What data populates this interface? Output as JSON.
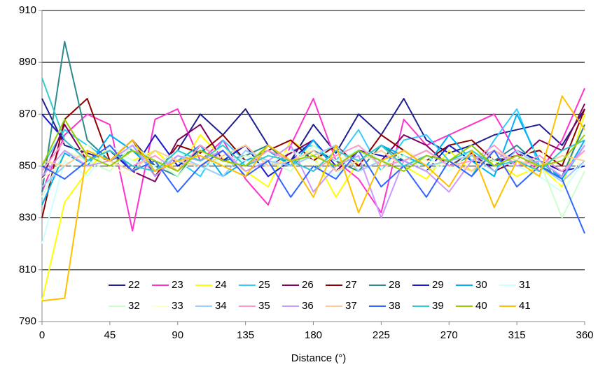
{
  "chart_data": {
    "type": "line",
    "xlabel": "Distance (°)",
    "x": [
      0,
      15,
      30,
      45,
      60,
      75,
      90,
      105,
      120,
      135,
      150,
      165,
      180,
      195,
      210,
      225,
      240,
      255,
      270,
      285,
      300,
      315,
      330,
      345,
      360
    ],
    "xlim": [
      0,
      360
    ],
    "xticks": [
      0,
      45,
      90,
      135,
      180,
      225,
      270,
      315,
      360
    ],
    "ylim": [
      790,
      910
    ],
    "yticks": [
      790,
      810,
      830,
      850,
      870,
      890,
      910
    ],
    "grid": true,
    "legend": "bottom",
    "series": [
      {
        "name": "22",
        "color": "#1f1f8f",
        "values": [
          876,
          858,
          855,
          852,
          860,
          850,
          856,
          870,
          862,
          872,
          858,
          852,
          866,
          855,
          870,
          862,
          876,
          860,
          855,
          858,
          862,
          864,
          866,
          858,
          872
        ]
      },
      {
        "name": "23",
        "color": "#ff33cc",
        "values": [
          840,
          862,
          870,
          866,
          825,
          868,
          872,
          852,
          860,
          845,
          835,
          858,
          876,
          852,
          845,
          832,
          868,
          858,
          862,
          866,
          870,
          855,
          848,
          860,
          880
        ]
      },
      {
        "name": "24",
        "color": "#ffff00",
        "values": [
          798,
          836,
          848,
          858,
          852,
          856,
          848,
          862,
          853,
          848,
          842,
          860,
          854,
          838,
          852,
          858,
          850,
          845,
          856,
          848,
          852,
          846,
          850,
          842,
          870
        ]
      },
      {
        "name": "25",
        "color": "#33ccff",
        "values": [
          850,
          864,
          858,
          852,
          848,
          856,
          852,
          846,
          860,
          852,
          850,
          856,
          858,
          852,
          864,
          848,
          860,
          862,
          852,
          846,
          860,
          872,
          850,
          845,
          858
        ]
      },
      {
        "name": "26",
        "color": "#800060",
        "values": [
          845,
          866,
          852,
          856,
          848,
          844,
          860,
          866,
          852,
          858,
          850,
          855,
          860,
          848,
          856,
          852,
          862,
          858,
          850,
          855,
          848,
          852,
          860,
          856,
          874
        ]
      },
      {
        "name": "27",
        "color": "#8b0000",
        "values": [
          830,
          868,
          876,
          852,
          860,
          846,
          858,
          855,
          862,
          852,
          856,
          860,
          852,
          858,
          850,
          862,
          856,
          852,
          858,
          860,
          852,
          854,
          856,
          850,
          872
        ]
      },
      {
        "name": "28",
        "color": "#2e8b8b",
        "values": [
          840,
          898,
          860,
          852,
          856,
          850,
          846,
          858,
          852,
          854,
          858,
          850,
          856,
          852,
          848,
          858,
          852,
          856,
          850,
          854,
          852,
          858,
          850,
          846,
          866
        ]
      },
      {
        "name": "29",
        "color": "#1a1acc",
        "values": [
          870,
          860,
          852,
          856,
          848,
          862,
          850,
          856,
          852,
          858,
          846,
          852,
          860,
          850,
          856,
          854,
          852,
          848,
          858,
          852,
          850,
          856,
          852,
          848,
          850
        ]
      },
      {
        "name": "30",
        "color": "#00b0f0",
        "values": [
          835,
          855,
          850,
          862,
          856,
          848,
          852,
          858,
          846,
          852,
          856,
          850,
          860,
          848,
          852,
          858,
          854,
          850,
          862,
          852,
          846,
          870,
          852,
          845,
          860
        ]
      },
      {
        "name": "31",
        "color": "#ccffff",
        "values": [
          820,
          852,
          846,
          858,
          852,
          850,
          856,
          848,
          854,
          852,
          850,
          856,
          852,
          846,
          858,
          852,
          850,
          854,
          848,
          856,
          852,
          850,
          846,
          840,
          852
        ]
      },
      {
        "name": "32",
        "color": "#ccffcc",
        "values": [
          838,
          856,
          852,
          848,
          858,
          852,
          846,
          856,
          850,
          854,
          852,
          848,
          858,
          852,
          856,
          850,
          854,
          848,
          852,
          858,
          850,
          854,
          852,
          830,
          848
        ]
      },
      {
        "name": "33",
        "color": "#ffffcc",
        "values": [
          845,
          852,
          858,
          850,
          846,
          856,
          852,
          850,
          858,
          846,
          852,
          856,
          850,
          854,
          852,
          848,
          856,
          852,
          850,
          846,
          854,
          852,
          858,
          840,
          856
        ]
      },
      {
        "name": "34",
        "color": "#99ccff",
        "values": [
          842,
          850,
          856,
          852,
          858,
          848,
          854,
          850,
          846,
          856,
          852,
          850,
          854,
          858,
          848,
          852,
          856,
          850,
          852,
          854,
          848,
          856,
          850,
          844,
          852
        ]
      },
      {
        "name": "35",
        "color": "#ff99cc",
        "values": [
          848,
          860,
          852,
          856,
          850,
          854,
          848,
          858,
          852,
          850,
          856,
          852,
          848,
          854,
          858,
          850,
          852,
          856,
          850,
          852,
          858,
          850,
          854,
          848,
          856
        ]
      },
      {
        "name": "36",
        "color": "#cc99ff",
        "values": [
          846,
          856,
          850,
          852,
          858,
          846,
          854,
          852,
          856,
          848,
          852,
          858,
          840,
          850,
          854,
          830,
          852,
          848,
          840,
          852,
          856,
          850,
          852,
          846,
          858
        ]
      },
      {
        "name": "37",
        "color": "#ffcc99",
        "values": [
          852,
          850,
          856,
          852,
          848,
          856,
          852,
          850,
          854,
          858,
          850,
          852,
          856,
          848,
          852,
          856,
          850,
          854,
          852,
          848,
          856,
          852,
          850,
          854,
          852
        ]
      },
      {
        "name": "38",
        "color": "#3366ff",
        "values": [
          850,
          845,
          852,
          858,
          848,
          852,
          840,
          850,
          856,
          846,
          852,
          838,
          850,
          845,
          856,
          842,
          850,
          838,
          852,
          846,
          856,
          842,
          850,
          845,
          824
        ]
      },
      {
        "name": "39",
        "color": "#33cccc",
        "values": [
          884,
          860,
          852,
          856,
          850,
          848,
          856,
          852,
          858,
          850,
          854,
          852,
          848,
          856,
          852,
          858,
          850,
          854,
          852,
          856,
          850,
          852,
          848,
          856,
          860
        ]
      },
      {
        "name": "40",
        "color": "#99cc00",
        "values": [
          850,
          868,
          854,
          850,
          856,
          852,
          848,
          856,
          852,
          850,
          858,
          852,
          854,
          850,
          856,
          852,
          848,
          854,
          852,
          858,
          850,
          854,
          850,
          852,
          862
        ]
      },
      {
        "name": "41",
        "color": "#ffc000",
        "values": [
          798,
          799,
          856,
          852,
          860,
          848,
          852,
          854,
          850,
          846,
          858,
          852,
          838,
          858,
          832,
          852,
          856,
          850,
          842,
          856,
          834,
          852,
          846,
          877,
          864
        ]
      }
    ]
  }
}
